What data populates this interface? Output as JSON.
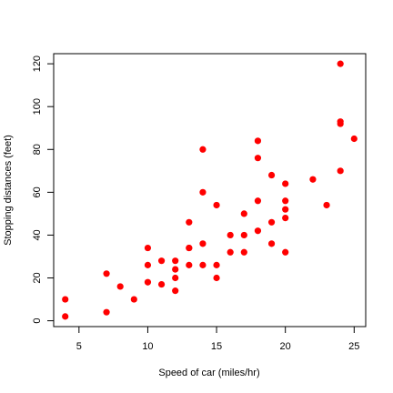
{
  "chart_data": {
    "type": "scatter",
    "title": "",
    "xlabel": "Speed of car (miles/hr)",
    "ylabel": "Stopping distances (feet)",
    "xlim": [
      3.16,
      25.84
    ],
    "ylim": [
      -2.72,
      124.72
    ],
    "xticks": [
      5,
      10,
      15,
      20,
      25
    ],
    "yticks": [
      0,
      20,
      40,
      60,
      80,
      100,
      120
    ],
    "xtick_labels": [
      "5",
      "10",
      "15",
      "20",
      "25"
    ],
    "ytick_labels": [
      "0",
      "20",
      "40",
      "60",
      "80",
      "100",
      "120"
    ],
    "grid": false,
    "point_color": "#ff0000",
    "points": [
      [
        4,
        2
      ],
      [
        4,
        10
      ],
      [
        7,
        4
      ],
      [
        7,
        22
      ],
      [
        8,
        16
      ],
      [
        9,
        10
      ],
      [
        10,
        18
      ],
      [
        10,
        26
      ],
      [
        10,
        34
      ],
      [
        11,
        17
      ],
      [
        11,
        28
      ],
      [
        12,
        14
      ],
      [
        12,
        20
      ],
      [
        12,
        24
      ],
      [
        12,
        28
      ],
      [
        13,
        26
      ],
      [
        13,
        34
      ],
      [
        13,
        34
      ],
      [
        13,
        46
      ],
      [
        14,
        26
      ],
      [
        14,
        36
      ],
      [
        14,
        60
      ],
      [
        14,
        80
      ],
      [
        15,
        20
      ],
      [
        15,
        26
      ],
      [
        15,
        54
      ],
      [
        16,
        32
      ],
      [
        16,
        40
      ],
      [
        17,
        32
      ],
      [
        17,
        40
      ],
      [
        17,
        50
      ],
      [
        18,
        42
      ],
      [
        18,
        56
      ],
      [
        18,
        76
      ],
      [
        18,
        84
      ],
      [
        19,
        36
      ],
      [
        19,
        46
      ],
      [
        19,
        68
      ],
      [
        20,
        32
      ],
      [
        20,
        48
      ],
      [
        20,
        52
      ],
      [
        20,
        56
      ],
      [
        20,
        64
      ],
      [
        22,
        66
      ],
      [
        23,
        54
      ],
      [
        24,
        70
      ],
      [
        24,
        92
      ],
      [
        24,
        93
      ],
      [
        24,
        120
      ],
      [
        25,
        85
      ]
    ]
  }
}
